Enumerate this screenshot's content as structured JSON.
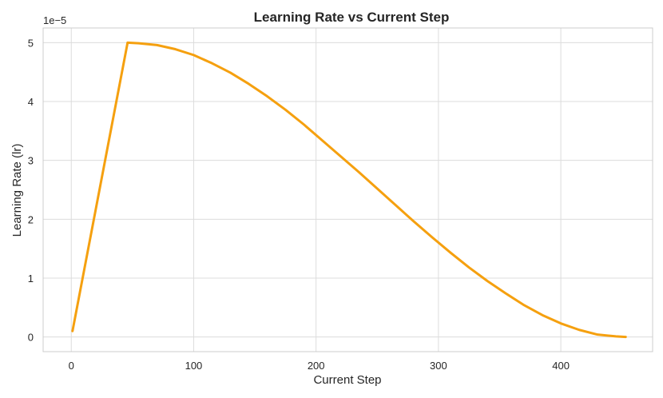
{
  "chart_data": {
    "type": "line",
    "title": "Learning Rate vs Current Step",
    "xlabel": "Current Step",
    "ylabel": "Learning Rate (lr)",
    "y_offset_label": "1e−5",
    "xlim": [
      -23,
      475
    ],
    "ylim": [
      -0.25,
      5.25
    ],
    "xticks": [
      0,
      100,
      200,
      300,
      400
    ],
    "yticks": [
      0,
      1,
      2,
      3,
      4,
      5
    ],
    "ytick_labels": [
      "0",
      "1",
      "2",
      "3",
      "4",
      "5"
    ],
    "grid": true,
    "color": "#f5a00f",
    "series": [
      {
        "x": [
          1,
          46,
          55,
          70,
          85,
          100,
          115,
          130,
          145,
          160,
          175,
          190,
          205,
          220,
          235,
          250,
          265,
          280,
          295,
          310,
          325,
          340,
          355,
          370,
          385,
          400,
          415,
          430,
          445,
          453
        ],
        "y": [
          0.1,
          5.0,
          4.99,
          4.96,
          4.89,
          4.79,
          4.65,
          4.49,
          4.3,
          4.09,
          3.86,
          3.61,
          3.34,
          3.07,
          2.8,
          2.52,
          2.24,
          1.96,
          1.69,
          1.43,
          1.18,
          0.95,
          0.74,
          0.54,
          0.37,
          0.23,
          0.12,
          0.04,
          0.01,
          0.0
        ]
      }
    ]
  }
}
